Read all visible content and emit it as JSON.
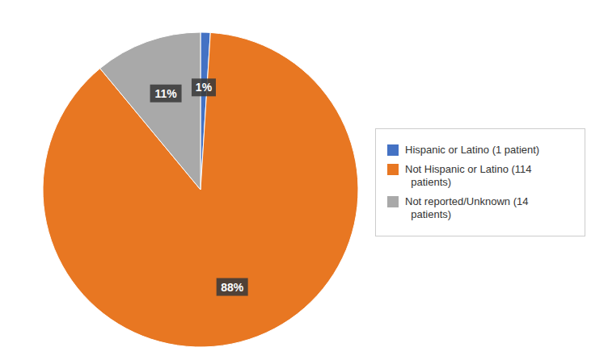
{
  "chart_data": {
    "type": "pie",
    "categories": [
      "Hispanic or Latino (1 patient)",
      "Not Hispanic or Latino (114\n  patients)",
      "Not reported/Unknown (14\n  patients)"
    ],
    "values": [
      1,
      88,
      11
    ],
    "value_labels": [
      "1%",
      "88%",
      "11%"
    ],
    "colors": [
      "#4472C4",
      "#E87722",
      "#A9A9A9"
    ],
    "data_labels": true,
    "legend": "right"
  }
}
